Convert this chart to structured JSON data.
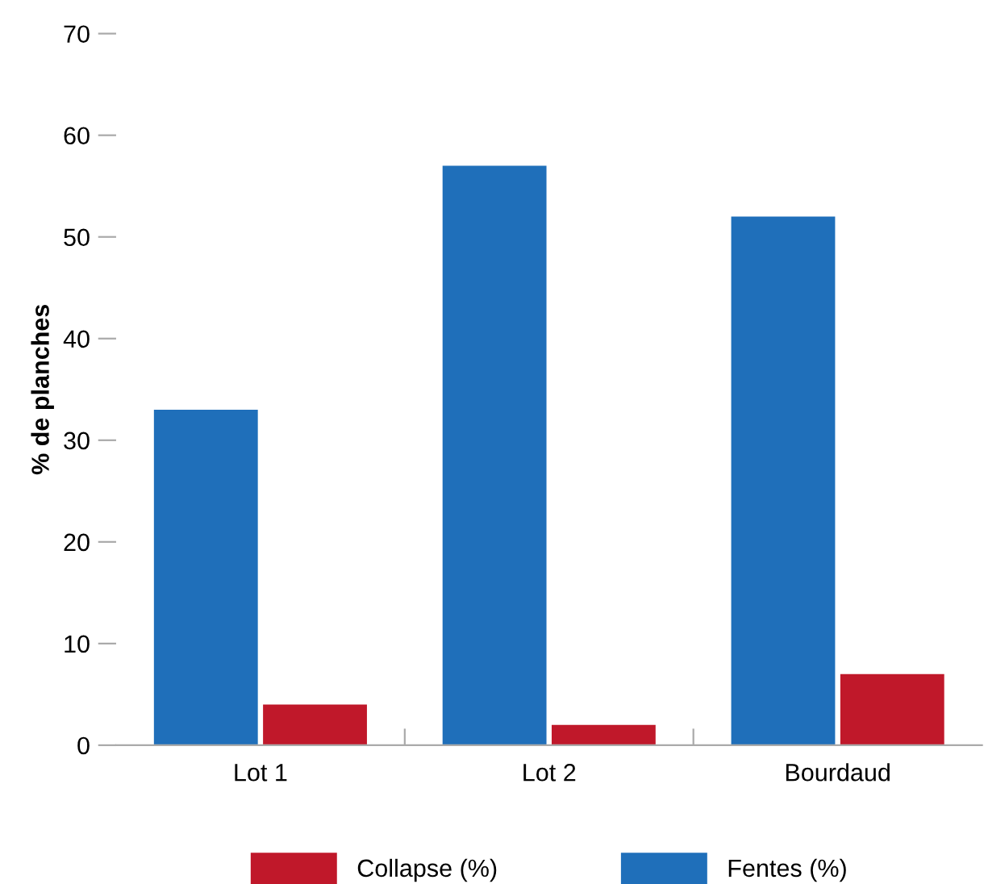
{
  "chart_data": {
    "type": "bar",
    "ylabel": "% de planches",
    "categories": [
      "Lot 1",
      "Lot 2",
      "Bourdaud"
    ],
    "series": [
      {
        "name": "Fentes (%)",
        "color": "#1f6fba",
        "values": [
          33,
          57,
          52
        ]
      },
      {
        "name": "Collapse (%)",
        "color": "#c0182a",
        "values": [
          4,
          2,
          7
        ]
      }
    ],
    "ylim": [
      0,
      70
    ],
    "yticks": [
      0,
      10,
      20,
      30,
      40,
      50,
      60,
      70
    ],
    "grid": false,
    "legend": "bottom"
  }
}
